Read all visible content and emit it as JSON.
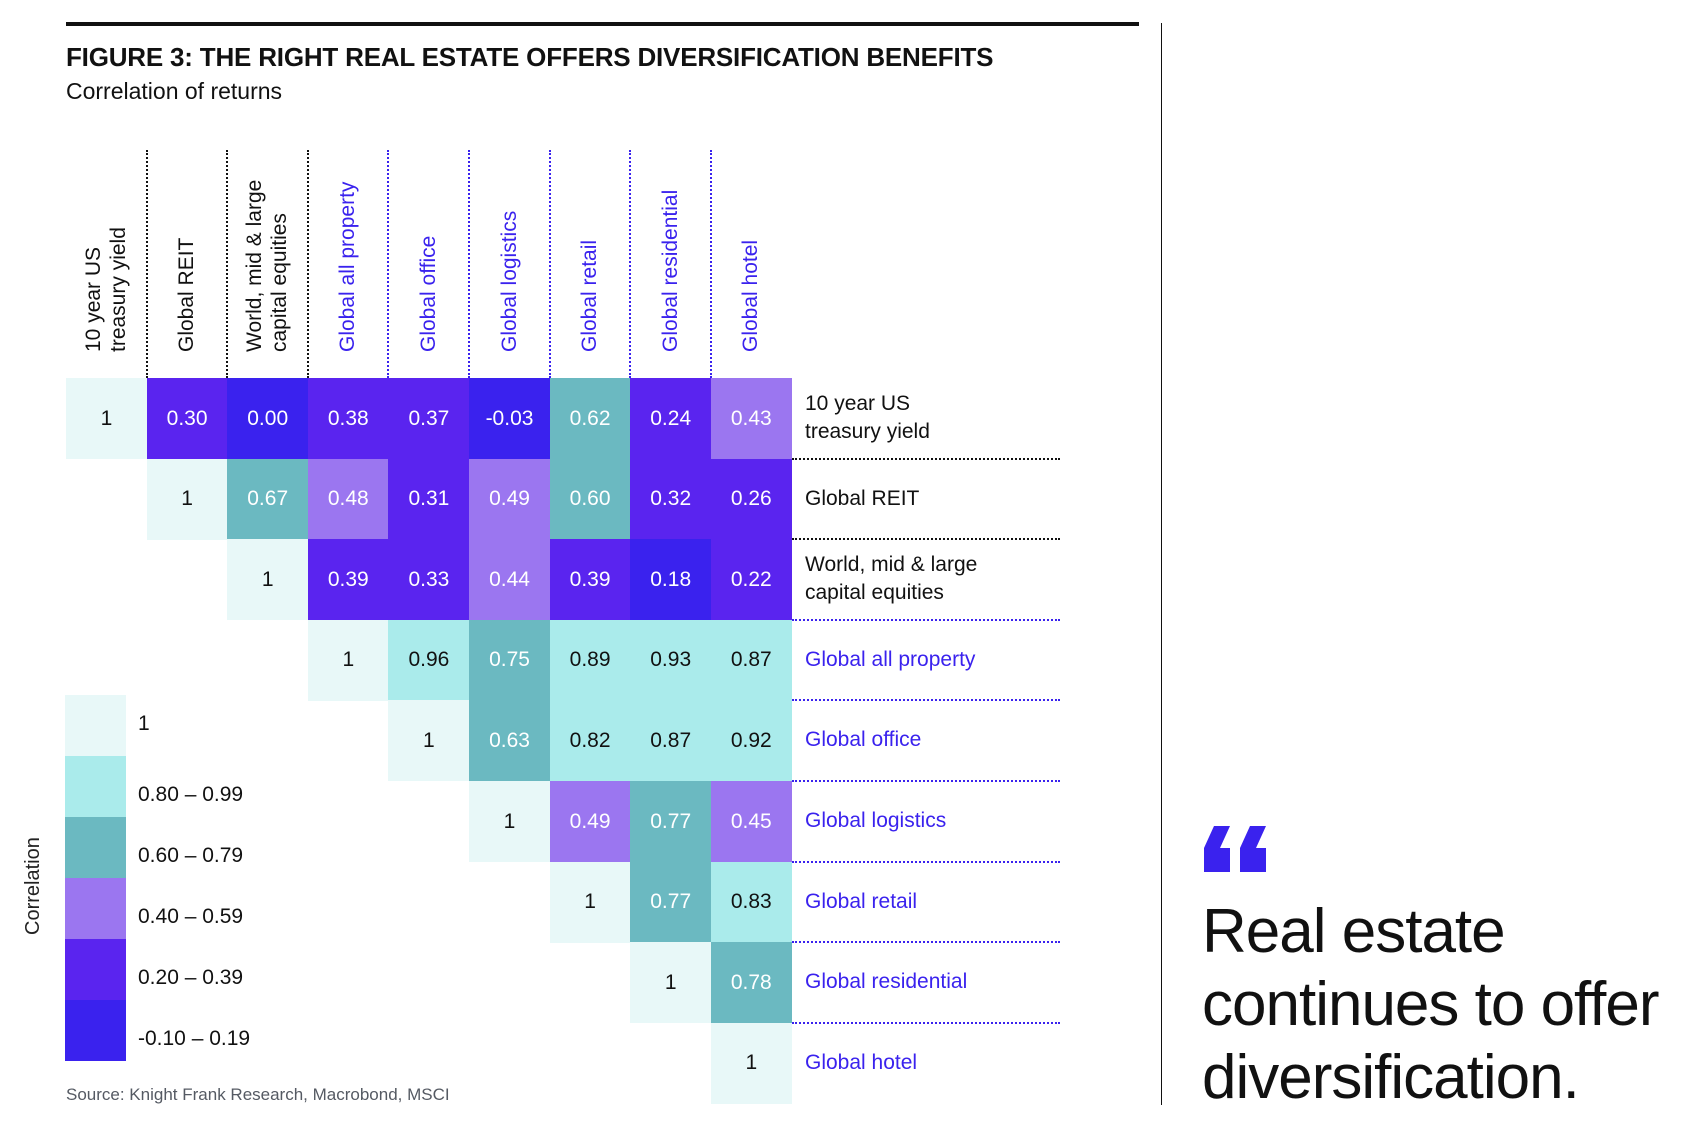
{
  "figure": {
    "title": "FIGURE 3: THE RIGHT REAL ESTATE OFFERS DIVERSIFICATION BENEFITS",
    "subtitle": "Correlation of returns",
    "source": "Source: Knight Frank Research, Macrobond, MSCI"
  },
  "quote": {
    "icon": "quote-mark-icon",
    "color": "#3a22ee",
    "text": "Real estate continues to offer diversification."
  },
  "chart_data": {
    "type": "heatmap",
    "title": "FIGURE 3: THE RIGHT REAL ESTATE OFFERS DIVERSIFICATION BENEFITS",
    "subtitle": "Correlation of returns",
    "layout": "upper-triangular",
    "variables": [
      {
        "label": "10 year US treasury yield",
        "lines": [
          "10 year US",
          "treasury yield"
        ],
        "group": "market"
      },
      {
        "label": "Global REIT",
        "lines": [
          "Global REIT"
        ],
        "group": "market"
      },
      {
        "label": "World, mid & large capital equities",
        "lines": [
          "World, mid & large",
          "capital equities"
        ],
        "group": "market"
      },
      {
        "label": "Global all property",
        "lines": [
          "Global all property"
        ],
        "group": "property"
      },
      {
        "label": "Global office",
        "lines": [
          "Global office"
        ],
        "group": "property"
      },
      {
        "label": "Global logistics",
        "lines": [
          "Global logistics"
        ],
        "group": "property"
      },
      {
        "label": "Global retail",
        "lines": [
          "Global retail"
        ],
        "group": "property"
      },
      {
        "label": "Global residential",
        "lines": [
          "Global residential"
        ],
        "group": "property"
      },
      {
        "label": "Global hotel",
        "lines": [
          "Global hotel"
        ],
        "group": "property"
      }
    ],
    "matrix": [
      [
        1,
        0.3,
        0.0,
        0.38,
        0.37,
        -0.03,
        0.62,
        0.24,
        0.43
      ],
      [
        null,
        1,
        0.67,
        0.48,
        0.31,
        0.49,
        0.6,
        0.32,
        0.26
      ],
      [
        null,
        null,
        1,
        0.39,
        0.33,
        0.44,
        0.39,
        0.18,
        0.22
      ],
      [
        null,
        null,
        null,
        1,
        0.96,
        0.75,
        0.89,
        0.93,
        0.87
      ],
      [
        null,
        null,
        null,
        null,
        1,
        0.63,
        0.82,
        0.87,
        0.92
      ],
      [
        null,
        null,
        null,
        null,
        null,
        1,
        0.49,
        0.77,
        0.45
      ],
      [
        null,
        null,
        null,
        null,
        null,
        null,
        1,
        0.77,
        0.83
      ],
      [
        null,
        null,
        null,
        null,
        null,
        null,
        null,
        1,
        0.78
      ],
      [
        null,
        null,
        null,
        null,
        null,
        null,
        null,
        null,
        1
      ]
    ],
    "legend": {
      "title": "Correlation",
      "placement": "bottom-left",
      "bins": [
        {
          "label": "1",
          "min": 1,
          "max": 1,
          "color": "#e8f8f8",
          "text_color": "#111111"
        },
        {
          "label": "0.80 – 0.99",
          "min": 0.8,
          "max": 0.99,
          "color": "#aaebeb",
          "text_color": "#111111"
        },
        {
          "label": "0.60 – 0.79",
          "min": 0.6,
          "max": 0.79,
          "color": "#6bb9c1",
          "text_color": "#ffffff"
        },
        {
          "label": "0.40 – 0.59",
          "min": 0.4,
          "max": 0.59,
          "color": "#9b76f0",
          "text_color": "#ffffff"
        },
        {
          "label": "0.20 – 0.39",
          "min": 0.2,
          "max": 0.39,
          "color": "#5a24ef",
          "text_color": "#ffffff"
        },
        {
          "label": "-0.10 – 0.19",
          "min": -0.1,
          "max": 0.19,
          "color": "#3a22ee",
          "text_color": "#ffffff"
        }
      ]
    },
    "group_colors": {
      "market": "#111111",
      "property": "#3a22ee"
    }
  }
}
